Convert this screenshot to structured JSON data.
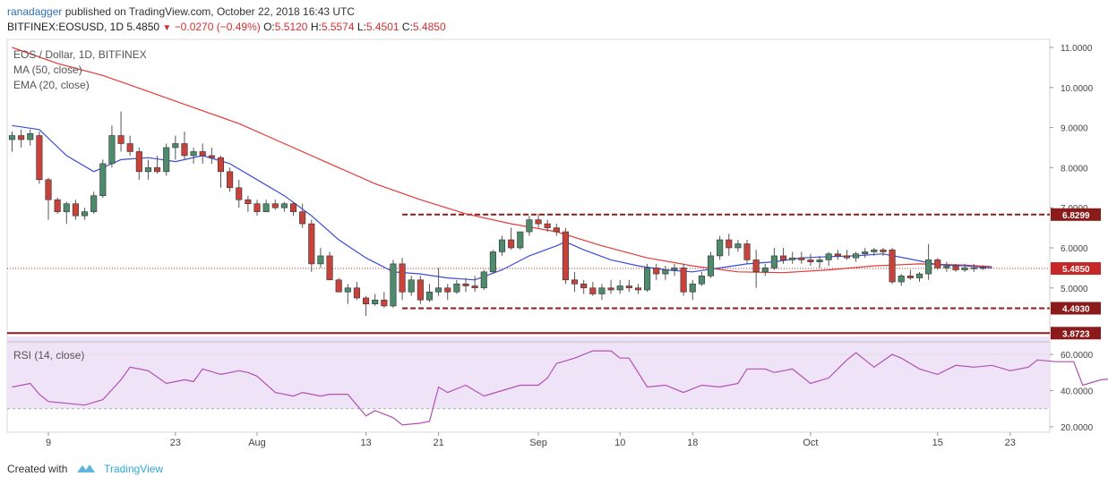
{
  "header": {
    "user": "ranadagger",
    "published": "published on TradingView.com, October 22, 2018 16:43 UTC",
    "symbol": "BITFINEX:EOSUSD, 1D",
    "last": "5.4850",
    "change": "−0.0270 (−0.49%)",
    "o_label": "O:",
    "o": "5.5120",
    "h_label": "H:",
    "h": "5.5574",
    "l_label": "L:",
    "l": "5.4501",
    "c_label": "C:",
    "c": "5.4850"
  },
  "legend": {
    "title": "EOS / Dollar, 1D, BITFINEX",
    "ma": "MA (50, close)",
    "ema": "EMA (20, close)",
    "rsi": "RSI (14, close)"
  },
  "footer": {
    "created_with": "Created with",
    "brand": "TradingView"
  },
  "colors": {
    "up": "#4e8a6c",
    "down": "#c7423a",
    "ma": "#e53935",
    "ema": "#3b4cd8",
    "rsi": "#b24fb4",
    "rsi_band": "#efe3f7",
    "level": "#8b1a1a",
    "price_line": "#c62828"
  },
  "chart_data": {
    "type": "candlestick",
    "price_axis": {
      "min": 3.7,
      "max": 11.2,
      "ticks": [
        5.0,
        6.0,
        7.0,
        8.0,
        9.0,
        10.0,
        11.0
      ],
      "tick_labels": [
        "5.0000",
        "6.0000",
        "7.0000",
        "8.0000",
        "9.0000",
        "10.0000",
        "11.0000"
      ]
    },
    "rsi_axis": {
      "min": 17,
      "max": 67,
      "ticks": [
        20,
        40,
        60
      ],
      "tick_labels": [
        "20.0000",
        "40.0000",
        "60.0000"
      ],
      "band": [
        30,
        70
      ]
    },
    "x_ticks": [
      {
        "i": 4,
        "label": "9"
      },
      {
        "i": 18,
        "label": "23"
      },
      {
        "i": 27,
        "label": "Aug"
      },
      {
        "i": 39,
        "label": "13"
      },
      {
        "i": 47,
        "label": "21"
      },
      {
        "i": 58,
        "label": "Sep"
      },
      {
        "i": 67,
        "label": "10"
      },
      {
        "i": 75,
        "label": "18"
      },
      {
        "i": 88,
        "label": "Oct"
      },
      {
        "i": 102,
        "label": "15"
      },
      {
        "i": 110,
        "label": "23"
      }
    ],
    "levels": [
      {
        "value": 6.8299,
        "label": "6.8299",
        "dashed": true,
        "from": 43
      },
      {
        "value": 4.493,
        "label": "4.4930",
        "dashed": true,
        "from": 43
      },
      {
        "value": 3.8723,
        "label": "3.8723",
        "dashed": false,
        "from": 0
      }
    ],
    "last_price": {
      "value": 5.485,
      "label": "5.4850"
    },
    "candles": [
      [
        8.7,
        8.9,
        8.4,
        8.8
      ],
      [
        8.8,
        8.95,
        8.5,
        8.7
      ],
      [
        8.7,
        8.95,
        8.55,
        8.85
      ],
      [
        8.8,
        8.9,
        7.6,
        7.7
      ],
      [
        7.7,
        7.75,
        6.7,
        7.2
      ],
      [
        7.2,
        7.25,
        6.85,
        6.9
      ],
      [
        6.9,
        7.15,
        6.6,
        7.1
      ],
      [
        7.1,
        7.2,
        6.7,
        6.8
      ],
      [
        6.8,
        7.0,
        6.7,
        6.9
      ],
      [
        6.9,
        7.4,
        6.85,
        7.3
      ],
      [
        7.3,
        8.2,
        7.25,
        8.1
      ],
      [
        8.1,
        9.05,
        8.0,
        8.8
      ],
      [
        8.8,
        9.4,
        8.4,
        8.6
      ],
      [
        8.6,
        8.8,
        8.3,
        8.4
      ],
      [
        8.4,
        8.5,
        7.7,
        7.9
      ],
      [
        7.9,
        8.2,
        7.7,
        8.0
      ],
      [
        8.0,
        8.3,
        7.85,
        7.9
      ],
      [
        7.9,
        8.6,
        7.8,
        8.5
      ],
      [
        8.5,
        8.8,
        8.2,
        8.6
      ],
      [
        8.6,
        8.9,
        8.2,
        8.3
      ],
      [
        8.3,
        8.5,
        8.1,
        8.4
      ],
      [
        8.4,
        8.6,
        8.1,
        8.3
      ],
      [
        8.3,
        8.5,
        8.1,
        8.25
      ],
      [
        8.25,
        8.3,
        7.5,
        7.9
      ],
      [
        7.9,
        8.0,
        7.4,
        7.5
      ],
      [
        7.5,
        7.7,
        7.0,
        7.2
      ],
      [
        7.2,
        7.3,
        6.9,
        7.1
      ],
      [
        7.1,
        7.2,
        6.8,
        6.9
      ],
      [
        6.9,
        7.2,
        6.9,
        7.1
      ],
      [
        7.1,
        7.2,
        6.95,
        7.0
      ],
      [
        7.0,
        7.15,
        6.9,
        7.1
      ],
      [
        7.1,
        7.15,
        6.8,
        6.9
      ],
      [
        6.9,
        7.1,
        6.5,
        6.6
      ],
      [
        6.6,
        6.7,
        5.4,
        5.6
      ],
      [
        5.6,
        6.0,
        5.5,
        5.8
      ],
      [
        5.8,
        5.9,
        5.2,
        5.2
      ],
      [
        5.2,
        5.25,
        4.9,
        4.9
      ],
      [
        4.9,
        5.1,
        4.6,
        5.0
      ],
      [
        5.0,
        5.15,
        4.7,
        4.75
      ],
      [
        4.75,
        4.8,
        4.3,
        4.6
      ],
      [
        4.6,
        4.85,
        4.55,
        4.7
      ],
      [
        4.7,
        4.9,
        4.5,
        4.55
      ],
      [
        4.55,
        5.7,
        4.5,
        5.6
      ],
      [
        5.6,
        5.75,
        4.7,
        4.9
      ],
      [
        4.9,
        5.3,
        4.8,
        5.2
      ],
      [
        5.2,
        5.3,
        4.6,
        4.7
      ],
      [
        4.7,
        5.1,
        4.65,
        4.9
      ],
      [
        4.9,
        5.5,
        4.8,
        5.0
      ],
      [
        5.0,
        5.1,
        4.7,
        4.9
      ],
      [
        4.9,
        5.2,
        4.85,
        5.1
      ],
      [
        5.1,
        5.25,
        4.9,
        5.05
      ],
      [
        5.05,
        5.3,
        4.9,
        5.0
      ],
      [
        5.0,
        5.45,
        4.95,
        5.4
      ],
      [
        5.4,
        5.95,
        5.35,
        5.9
      ],
      [
        5.9,
        6.3,
        5.8,
        6.2
      ],
      [
        6.2,
        6.5,
        5.95,
        6.0
      ],
      [
        6.0,
        6.4,
        5.95,
        6.4
      ],
      [
        6.4,
        6.8,
        6.3,
        6.7
      ],
      [
        6.7,
        6.85,
        6.5,
        6.6
      ],
      [
        6.6,
        6.7,
        6.4,
        6.5
      ],
      [
        6.5,
        6.6,
        6.3,
        6.4
      ],
      [
        6.4,
        6.5,
        5.1,
        5.2
      ],
      [
        5.2,
        5.4,
        4.9,
        5.1
      ],
      [
        5.1,
        5.2,
        4.85,
        5.0
      ],
      [
        5.0,
        5.15,
        4.8,
        4.85
      ],
      [
        4.85,
        5.1,
        4.7,
        5.0
      ],
      [
        5.0,
        5.2,
        4.85,
        4.95
      ],
      [
        4.95,
        5.2,
        4.85,
        5.05
      ],
      [
        5.05,
        5.2,
        4.9,
        5.0
      ],
      [
        5.0,
        5.1,
        4.85,
        4.95
      ],
      [
        4.95,
        5.6,
        4.9,
        5.5
      ],
      [
        5.5,
        5.6,
        5.2,
        5.35
      ],
      [
        5.35,
        5.55,
        5.2,
        5.45
      ],
      [
        5.45,
        5.6,
        5.3,
        5.5
      ],
      [
        5.5,
        5.6,
        4.8,
        4.9
      ],
      [
        4.9,
        5.2,
        4.7,
        5.1
      ],
      [
        5.1,
        5.4,
        5.05,
        5.3
      ],
      [
        5.3,
        5.9,
        5.25,
        5.8
      ],
      [
        5.8,
        6.3,
        5.7,
        6.2
      ],
      [
        6.2,
        6.35,
        5.8,
        6.0
      ],
      [
        6.0,
        6.2,
        5.9,
        6.1
      ],
      [
        6.1,
        6.2,
        5.6,
        5.7
      ],
      [
        5.7,
        5.95,
        5.0,
        5.4
      ],
      [
        5.4,
        5.6,
        5.3,
        5.5
      ],
      [
        5.5,
        6.0,
        5.45,
        5.8
      ],
      [
        5.8,
        6.0,
        5.6,
        5.7
      ],
      [
        5.7,
        5.9,
        5.6,
        5.75
      ],
      [
        5.75,
        5.9,
        5.6,
        5.7
      ],
      [
        5.7,
        5.85,
        5.55,
        5.65
      ],
      [
        5.65,
        5.8,
        5.5,
        5.7
      ],
      [
        5.7,
        5.9,
        5.55,
        5.85
      ],
      [
        5.85,
        5.95,
        5.7,
        5.8
      ],
      [
        5.8,
        5.95,
        5.7,
        5.75
      ],
      [
        5.75,
        5.9,
        5.65,
        5.85
      ],
      [
        5.85,
        6.0,
        5.75,
        5.9
      ],
      [
        5.9,
        6.0,
        5.8,
        5.95
      ],
      [
        5.95,
        6.0,
        5.8,
        5.9
      ],
      [
        5.95,
        6.0,
        5.1,
        5.15
      ],
      [
        5.15,
        5.35,
        5.05,
        5.3
      ],
      [
        5.3,
        5.45,
        5.2,
        5.25
      ],
      [
        5.25,
        5.4,
        5.15,
        5.35
      ],
      [
        5.35,
        6.1,
        5.2,
        5.7
      ],
      [
        5.7,
        5.75,
        5.45,
        5.5
      ],
      [
        5.5,
        5.65,
        5.4,
        5.55
      ],
      [
        5.55,
        5.6,
        5.4,
        5.45
      ],
      [
        5.45,
        5.6,
        5.4,
        5.5
      ],
      [
        5.5,
        5.6,
        5.4,
        5.5
      ],
      [
        5.512,
        5.5574,
        5.4501,
        5.485
      ]
    ],
    "ma50": [
      [
        0,
        11.0
      ],
      [
        5,
        10.6
      ],
      [
        10,
        10.3
      ],
      [
        15,
        9.9
      ],
      [
        20,
        9.5
      ],
      [
        25,
        9.1
      ],
      [
        30,
        8.6
      ],
      [
        35,
        8.1
      ],
      [
        40,
        7.6
      ],
      [
        45,
        7.2
      ],
      [
        50,
        6.85
      ],
      [
        55,
        6.6
      ],
      [
        60,
        6.4
      ],
      [
        65,
        6.05
      ],
      [
        70,
        5.75
      ],
      [
        75,
        5.55
      ],
      [
        80,
        5.4
      ],
      [
        85,
        5.38
      ],
      [
        90,
        5.45
      ],
      [
        95,
        5.55
      ],
      [
        100,
        5.6
      ],
      [
        105,
        5.57
      ],
      [
        108,
        5.53
      ]
    ],
    "ema20": [
      [
        0,
        9.05
      ],
      [
        3,
        8.95
      ],
      [
        6,
        8.3
      ],
      [
        9,
        7.9
      ],
      [
        12,
        8.2
      ],
      [
        15,
        8.25
      ],
      [
        18,
        8.15
      ],
      [
        21,
        8.3
      ],
      [
        24,
        8.1
      ],
      [
        27,
        7.7
      ],
      [
        30,
        7.3
      ],
      [
        33,
        6.8
      ],
      [
        36,
        6.2
      ],
      [
        39,
        5.75
      ],
      [
        42,
        5.4
      ],
      [
        45,
        5.35
      ],
      [
        48,
        5.25
      ],
      [
        51,
        5.2
      ],
      [
        54,
        5.45
      ],
      [
        57,
        5.8
      ],
      [
        60,
        6.05
      ],
      [
        61,
        6.15
      ],
      [
        63,
        5.95
      ],
      [
        66,
        5.7
      ],
      [
        69,
        5.55
      ],
      [
        72,
        5.45
      ],
      [
        75,
        5.4
      ],
      [
        78,
        5.5
      ],
      [
        81,
        5.6
      ],
      [
        84,
        5.65
      ],
      [
        87,
        5.75
      ],
      [
        90,
        5.78
      ],
      [
        93,
        5.8
      ],
      [
        96,
        5.85
      ],
      [
        99,
        5.72
      ],
      [
        102,
        5.58
      ],
      [
        105,
        5.55
      ],
      [
        108,
        5.5
      ]
    ],
    "rsi": [
      [
        0,
        42
      ],
      [
        2,
        44
      ],
      [
        3,
        38
      ],
      [
        4,
        34
      ],
      [
        6,
        33
      ],
      [
        8,
        32
      ],
      [
        10,
        35
      ],
      [
        12,
        46
      ],
      [
        13,
        53
      ],
      [
        15,
        51
      ],
      [
        17,
        44
      ],
      [
        19,
        46
      ],
      [
        20,
        45
      ],
      [
        21,
        52
      ],
      [
        23,
        49
      ],
      [
        25,
        51
      ],
      [
        26,
        50
      ],
      [
        27,
        48
      ],
      [
        29,
        39
      ],
      [
        31,
        37
      ],
      [
        32,
        39
      ],
      [
        34,
        37
      ],
      [
        35,
        38
      ],
      [
        37,
        38
      ],
      [
        38,
        32
      ],
      [
        39,
        26
      ],
      [
        40,
        29
      ],
      [
        42,
        25
      ],
      [
        43,
        21
      ],
      [
        45,
        22
      ],
      [
        46,
        23
      ],
      [
        47,
        42
      ],
      [
        48,
        39
      ],
      [
        50,
        43
      ],
      [
        52,
        37
      ],
      [
        54,
        40
      ],
      [
        56,
        43
      ],
      [
        58,
        43
      ],
      [
        59,
        47
      ],
      [
        60,
        55
      ],
      [
        62,
        58
      ],
      [
        64,
        62
      ],
      [
        66,
        62
      ],
      [
        67,
        58
      ],
      [
        68,
        58
      ],
      [
        70,
        42
      ],
      [
        72,
        43
      ],
      [
        74,
        39
      ],
      [
        76,
        43
      ],
      [
        78,
        42
      ],
      [
        80,
        44
      ],
      [
        81,
        52
      ],
      [
        83,
        52
      ],
      [
        84,
        50
      ],
      [
        86,
        52
      ],
      [
        88,
        44
      ],
      [
        90,
        47
      ],
      [
        92,
        57
      ],
      [
        93,
        61
      ],
      [
        95,
        53
      ],
      [
        97,
        60
      ],
      [
        98,
        58
      ],
      [
        100,
        52
      ],
      [
        102,
        49
      ],
      [
        104,
        54
      ],
      [
        106,
        53
      ],
      [
        108,
        54
      ],
      [
        110,
        51
      ],
      [
        112,
        53
      ],
      [
        113,
        57
      ],
      [
        115,
        56
      ],
      [
        117,
        56
      ],
      [
        118,
        43
      ],
      [
        120,
        46
      ],
      [
        122,
        47
      ],
      [
        124,
        44
      ],
      [
        125,
        51
      ],
      [
        127,
        50
      ],
      [
        129,
        46
      ],
      [
        131,
        47
      ],
      [
        133,
        48
      ]
    ]
  }
}
